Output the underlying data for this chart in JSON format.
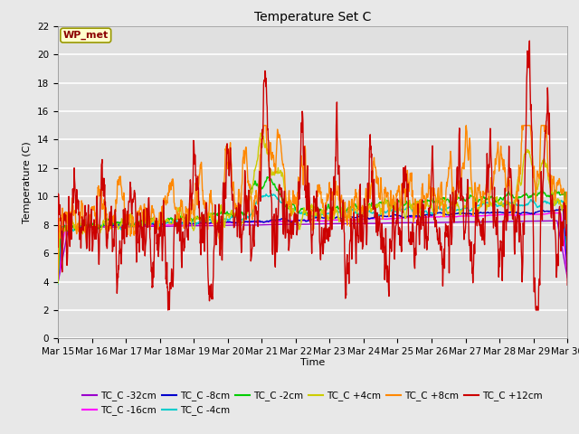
{
  "title": "Temperature Set C",
  "xlabel": "Time",
  "ylabel": "Temperature (C)",
  "ylim": [
    0,
    22
  ],
  "x_tick_labels": [
    "Mar 15",
    "Mar 16",
    "Mar 17",
    "Mar 18",
    "Mar 19",
    "Mar 20",
    "Mar 21",
    "Mar 22",
    "Mar 23",
    "Mar 24",
    "Mar 25",
    "Mar 26",
    "Mar 27",
    "Mar 28",
    "Mar 29",
    "Mar 30"
  ],
  "fig_bg": "#e8e8e8",
  "plot_bg": "#e0e0e0",
  "grid_color": "#ffffff",
  "legend_label": "WP_met",
  "series_colors": {
    "TC_C -32cm": "#9900cc",
    "TC_C -16cm": "#ff00ff",
    "TC_C -8cm": "#0000cc",
    "TC_C -4cm": "#00cccc",
    "TC_C -2cm": "#00cc00",
    "TC_C +4cm": "#cccc00",
    "TC_C +8cm": "#ff8800",
    "TC_C +12cm": "#cc0000"
  }
}
